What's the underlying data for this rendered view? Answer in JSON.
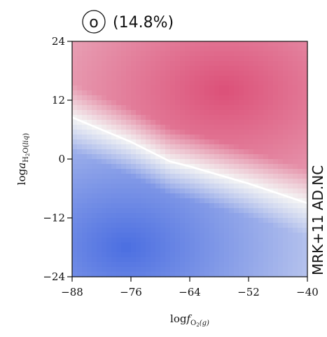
{
  "chart_data": {
    "type": "heatmap",
    "panel_label": "o",
    "panel_percent": "(14.8%)",
    "side_label": "MRK+11 AD.NC",
    "xlabel": {
      "main": "log",
      "f": "f",
      "sub": "O",
      "sub2": "2",
      "phase": "(g)"
    },
    "ylabel": {
      "main": "log",
      "a": "a",
      "sub": "H",
      "sub2": "2",
      "rest": "O(",
      "phase": "liq",
      "close": ")"
    },
    "xlim": [
      -88,
      -40
    ],
    "ylim": [
      -24,
      24
    ],
    "x_ticks": [
      -88,
      -76,
      -64,
      -52,
      -40
    ],
    "y_ticks": [
      -24,
      -12,
      0,
      12,
      24
    ],
    "x_tick_labels": [
      "−88",
      "−76",
      "−64",
      "−52",
      "−40"
    ],
    "y_tick_labels": [
      "−24",
      "−12",
      "0",
      "12",
      "24"
    ],
    "boundary_line": {
      "x": [
        -88,
        -76,
        -68,
        -64,
        -52,
        -40
      ],
      "y": [
        8.5,
        3.5,
        -0.5,
        -1.5,
        -5,
        -9
      ]
    },
    "colors": {
      "positive": "#dc5078",
      "negative": "#4b6ee1",
      "neutral": "#f4f4f4",
      "line": "#ffffff"
    }
  }
}
